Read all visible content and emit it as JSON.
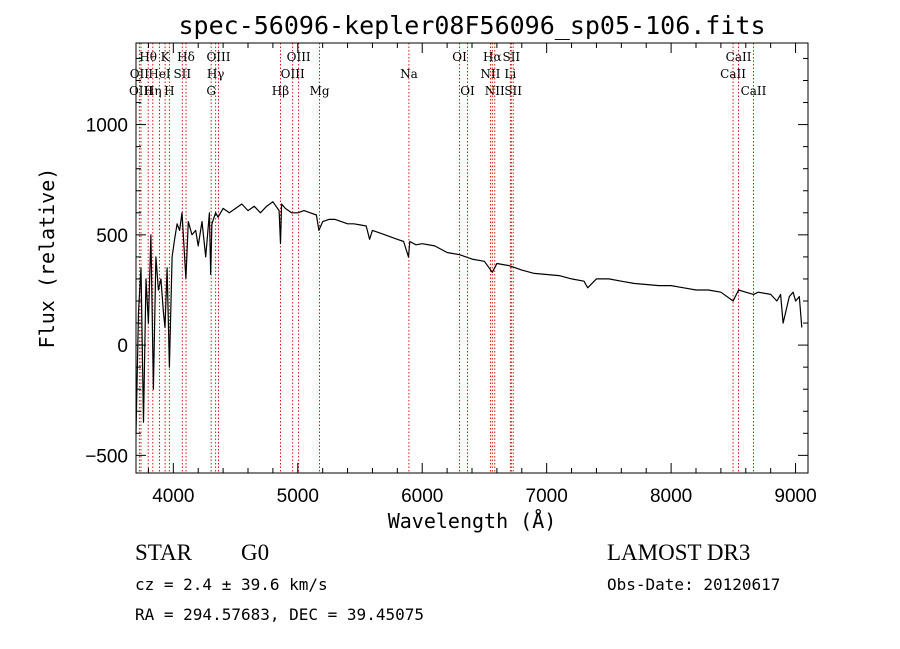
{
  "chart_data": {
    "type": "line",
    "title": "spec-56096-kepler08F56096_sp05-106.fits",
    "xlabel": "Wavelength (Å)",
    "ylabel": "Flux (relative)",
    "xlim": [
      3700,
      9100
    ],
    "ylim": [
      -580,
      1370
    ],
    "x_ticks": [
      4000,
      5000,
      6000,
      7000,
      8000,
      9000
    ],
    "x_tick_labels": [
      "4000",
      "5000",
      "6000",
      "7000",
      "8000",
      "9000"
    ],
    "y_ticks": [
      -500,
      0,
      500,
      1000
    ],
    "y_tick_labels": [
      "−500",
      "0",
      "500",
      "1000"
    ],
    "grid": false,
    "series": [
      {
        "name": "spectrum",
        "color": "#000000",
        "x": [
          3700,
          3720,
          3740,
          3760,
          3780,
          3800,
          3820,
          3840,
          3860,
          3880,
          3900,
          3920,
          3933,
          3950,
          3968,
          3990,
          4010,
          4030,
          4050,
          4070,
          4101,
          4120,
          4150,
          4180,
          4200,
          4230,
          4260,
          4290,
          4300,
          4310,
          4340,
          4360,
          4400,
          4450,
          4500,
          4550,
          4600,
          4650,
          4700,
          4750,
          4800,
          4850,
          4861,
          4870,
          4900,
          4950,
          5000,
          5050,
          5100,
          5150,
          5170,
          5200,
          5250,
          5300,
          5350,
          5400,
          5450,
          5500,
          5550,
          5577,
          5600,
          5650,
          5700,
          5750,
          5800,
          5850,
          5890,
          5900,
          5950,
          6000,
          6100,
          6200,
          6300,
          6400,
          6500,
          6563,
          6600,
          6700,
          6800,
          6900,
          7000,
          7100,
          7200,
          7300,
          7330,
          7400,
          7500,
          7600,
          7700,
          7800,
          7900,
          8000,
          8100,
          8200,
          8300,
          8400,
          8498,
          8542,
          8600,
          8662,
          8700,
          8800,
          8850,
          8880,
          8900,
          8950,
          8980,
          9000,
          9030,
          9050
        ],
        "y": [
          -400,
          150,
          350,
          -350,
          300,
          100,
          500,
          -200,
          400,
          250,
          300,
          150,
          80,
          350,
          -100,
          400,
          480,
          550,
          520,
          600,
          300,
          560,
          500,
          520,
          450,
          560,
          400,
          600,
          320,
          550,
          600,
          580,
          620,
          600,
          620,
          640,
          610,
          630,
          600,
          630,
          650,
          610,
          460,
          640,
          620,
          600,
          600,
          610,
          600,
          590,
          520,
          560,
          570,
          570,
          560,
          550,
          550,
          545,
          540,
          480,
          520,
          510,
          500,
          490,
          480,
          470,
          400,
          470,
          455,
          460,
          450,
          420,
          410,
          390,
          380,
          330,
          370,
          360,
          340,
          325,
          320,
          315,
          300,
          290,
          260,
          300,
          300,
          290,
          280,
          275,
          270,
          270,
          260,
          250,
          250,
          240,
          200,
          250,
          240,
          230,
          240,
          230,
          200,
          230,
          100,
          220,
          240,
          200,
          220,
          80
        ]
      }
    ],
    "spectral_lines": [
      {
        "label": "Hθ",
        "x": 3798,
        "row": 0
      },
      {
        "label": "OII",
        "x": 3727,
        "row": 1
      },
      {
        "label": "OIII",
        "x": 3740,
        "row": 2
      },
      {
        "label": "K",
        "x": 3934,
        "row": 0
      },
      {
        "label": "HeI",
        "x": 3889,
        "row": 1
      },
      {
        "label": "Hη",
        "x": 3835,
        "row": 2
      },
      {
        "label": "Hδ",
        "x": 4102,
        "row": 0
      },
      {
        "label": "SII",
        "x": 4072,
        "row": 1
      },
      {
        "label": "H",
        "x": 3968,
        "row": 2
      },
      {
        "label": "OIII",
        "x": 4363,
        "row": 0
      },
      {
        "label": "Hγ",
        "x": 4340,
        "row": 1
      },
      {
        "label": "G",
        "x": 4304,
        "row": 2
      },
      {
        "label": "OIII",
        "x": 5007,
        "row": 0
      },
      {
        "label": "OIII",
        "x": 4959,
        "row": 1
      },
      {
        "label": "Hβ",
        "x": 4861,
        "row": 2
      },
      {
        "label": "Mg",
        "x": 5175,
        "row": 2
      },
      {
        "label": "Na",
        "x": 5893,
        "row": 1
      },
      {
        "label": "OI",
        "x": 6300,
        "row": 0
      },
      {
        "label": "OI",
        "x": 6364,
        "row": 2
      },
      {
        "label": "Hα",
        "x": 6563,
        "row": 0
      },
      {
        "label": "NII",
        "x": 6548,
        "row": 1
      },
      {
        "label": "NII",
        "x": 6583,
        "row": 2
      },
      {
        "label": "SII",
        "x": 6716,
        "row": 0
      },
      {
        "label": "Li",
        "x": 6708,
        "row": 1
      },
      {
        "label": "SII",
        "x": 6731,
        "row": 2
      },
      {
        "label": "CaII",
        "x": 8542,
        "row": 0
      },
      {
        "label": "CaII",
        "x": 8498,
        "row": 1
      },
      {
        "label": "CaII",
        "x": 8662,
        "row": 2
      }
    ],
    "colors": {
      "line": "#000000",
      "marker_line": "#cc0000",
      "axes": "#000000"
    }
  },
  "info": {
    "class_label": "STAR",
    "subclass": "G0",
    "survey": "LAMOST DR3",
    "cz": "cz = 2.4 ± 39.6 km/s",
    "obs_date": "Obs-Date: 20120617",
    "coords": "RA = 294.57683, DEC =  39.45075"
  }
}
